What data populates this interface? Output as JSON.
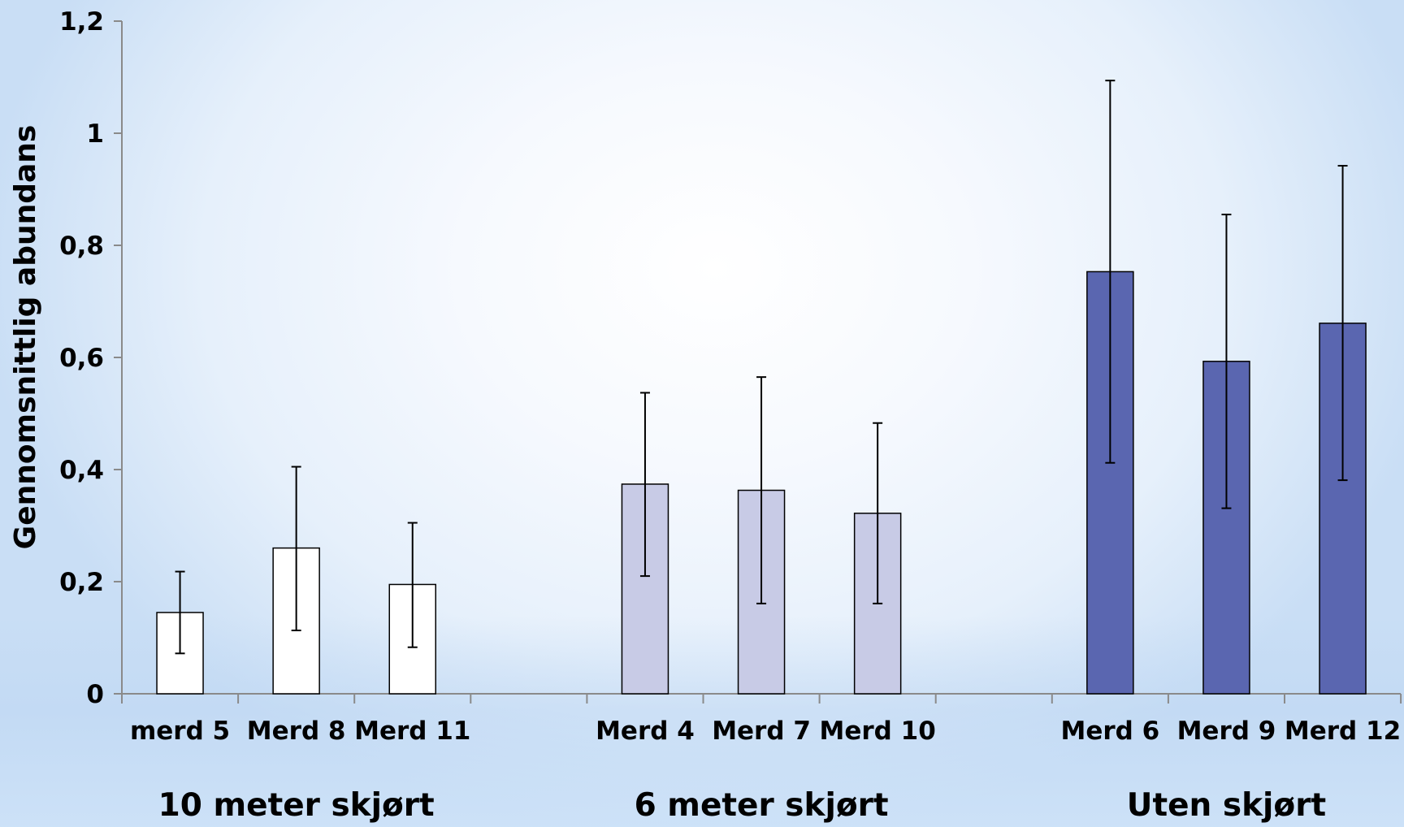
{
  "chart_data": {
    "type": "bar",
    "ylabel": "Gennomsnittlig abundans",
    "xlabel": "",
    "ylim": [
      0,
      1.2
    ],
    "yticks": [
      "0",
      "0,2",
      "0,4",
      "0,6",
      "0,8",
      "1",
      "1,2"
    ],
    "grid": false,
    "legend": "none",
    "categories": [
      "merd 5",
      "Merd 8",
      "Merd 11",
      "Merd 4",
      "Merd 7",
      "Merd 10",
      "Merd 6",
      "Merd 9",
      "Merd 12"
    ],
    "groups": [
      {
        "label": "10 meter skjørt",
        "color": "#ffffff",
        "bars": [
          {
            "category": "merd 5",
            "value": 0.145,
            "err_low": 0.072,
            "err_high": 0.218
          },
          {
            "category": "Merd 8",
            "value": 0.26,
            "err_low": 0.113,
            "err_high": 0.405
          },
          {
            "category": "Merd 11",
            "value": 0.195,
            "err_low": 0.083,
            "err_high": 0.305
          }
        ]
      },
      {
        "label": "6 meter skjørt",
        "color": "#c8cbe6",
        "bars": [
          {
            "category": "Merd 4",
            "value": 0.374,
            "err_low": 0.21,
            "err_high": 0.537
          },
          {
            "category": "Merd 7",
            "value": 0.363,
            "err_low": 0.161,
            "err_high": 0.565
          },
          {
            "category": "Merd 10",
            "value": 0.322,
            "err_low": 0.161,
            "err_high": 0.483
          }
        ]
      },
      {
        "label": "Uten skjørt",
        "color": "#5a66b0",
        "bars": [
          {
            "category": "Merd 6",
            "value": 0.753,
            "err_low": 0.412,
            "err_high": 1.094
          },
          {
            "category": "Merd 9",
            "value": 0.593,
            "err_low": 0.331,
            "err_high": 0.855
          },
          {
            "category": "Merd 12",
            "value": 0.661,
            "err_low": 0.381,
            "err_high": 0.942
          }
        ]
      }
    ]
  }
}
